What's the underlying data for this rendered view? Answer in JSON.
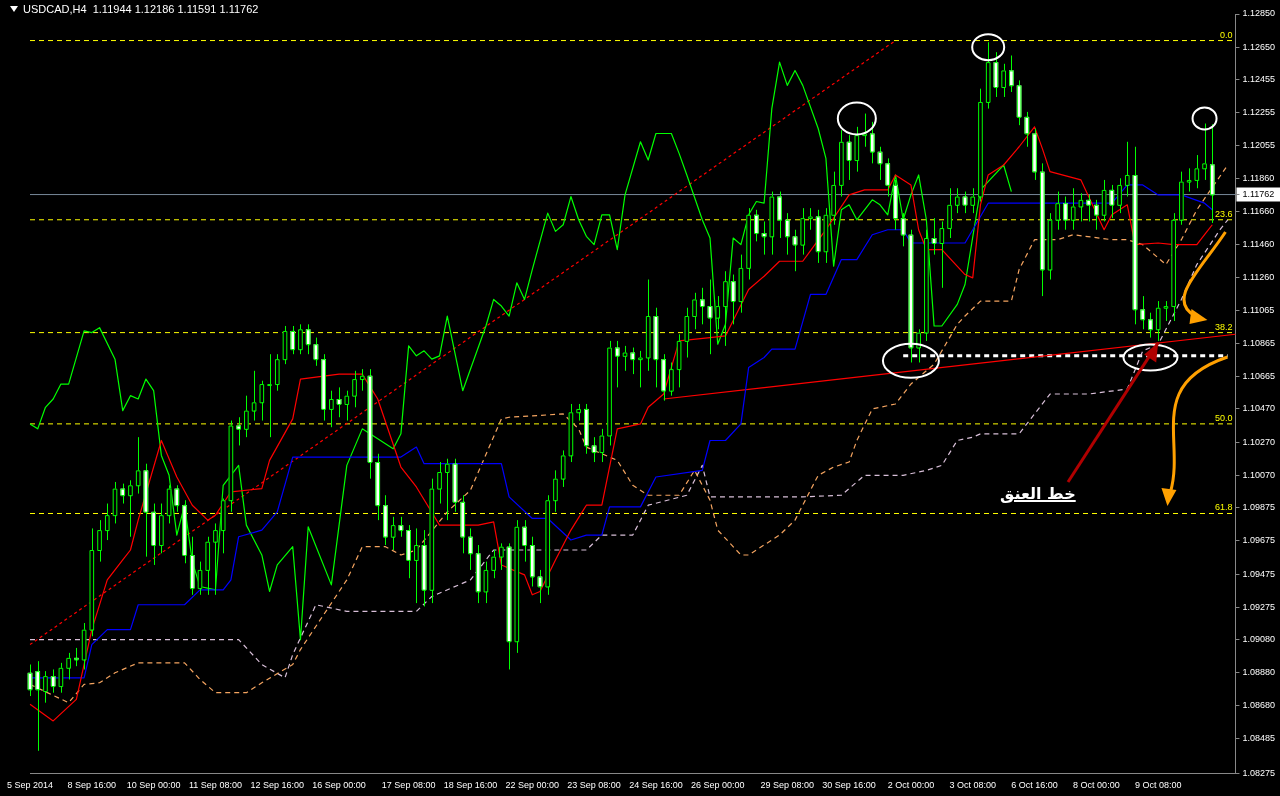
{
  "chart_data": {
    "type": "candlestick",
    "title": "USDCAD,H4  1.11944 1.12186 1.11591 1.11762",
    "categories": [
      "5 Sep 2014",
      null,
      null,
      null,
      null,
      null,
      null,
      null,
      "8 Sep 16:00",
      null,
      null,
      null,
      null,
      null,
      null,
      null,
      "10 Sep 00:00",
      null,
      null,
      null,
      null,
      null,
      null,
      null,
      "11 Sep 08:00",
      null,
      null,
      null,
      null,
      null,
      null,
      null,
      "12 Sep 16:00",
      null,
      null,
      null,
      null,
      null,
      null,
      null,
      "16 Sep 00:00",
      null,
      null,
      null,
      null,
      null,
      null,
      null,
      null,
      "17 Sep 08:00",
      null,
      null,
      null,
      null,
      null,
      null,
      null,
      "18 Sep 16:00",
      null,
      null,
      null,
      null,
      null,
      null,
      null,
      "22 Sep 00:00",
      null,
      null,
      null,
      null,
      null,
      null,
      null,
      "23 Sep 08:00",
      null,
      null,
      null,
      null,
      null,
      null,
      null,
      "24 Sep 16:00",
      null,
      null,
      null,
      null,
      null,
      null,
      null,
      "26 Sep 00:00",
      null,
      null,
      null,
      null,
      null,
      null,
      null,
      null,
      "29 Sep 08:00",
      null,
      null,
      null,
      null,
      null,
      null,
      null,
      "30 Sep 16:00",
      null,
      null,
      null,
      null,
      null,
      null,
      null,
      "2 Oct 00:00",
      null,
      null,
      null,
      null,
      null,
      null,
      null,
      "3 Oct 08:00",
      null,
      null,
      null,
      null,
      null,
      null,
      null,
      "6 Oct 16:00",
      null,
      null,
      null,
      null,
      null,
      null,
      null,
      "8 Oct 00:00",
      null,
      null,
      null,
      null,
      null,
      null,
      null,
      "9 Oct 08:00",
      null,
      null,
      null,
      null,
      null,
      null,
      null,
      null,
      null,
      null
    ],
    "ohlc": [
      [
        1.0888,
        1.0893,
        1.0874,
        1.0878
      ],
      [
        1.0889,
        1.0895,
        1.0841,
        1.0878
      ],
      [
        1.0877,
        1.0889,
        1.087,
        1.0886
      ],
      [
        1.0886,
        1.089,
        1.0876,
        1.088
      ],
      [
        1.088,
        1.0894,
        1.0876,
        1.0891
      ],
      [
        1.0891,
        1.09,
        1.0884,
        1.0897
      ],
      [
        1.0897,
        1.0903,
        1.0892,
        1.0896
      ],
      [
        1.0896,
        1.0918,
        1.089,
        1.0914
      ],
      [
        1.0914,
        1.0975,
        1.091,
        1.0962
      ],
      [
        1.0962,
        1.098,
        1.0955,
        1.0974
      ],
      [
        1.0974,
        1.099,
        1.0968,
        1.0983
      ],
      [
        1.0983,
        1.1003,
        1.0978,
        1.0999
      ],
      [
        1.0999,
        1.1002,
        1.099,
        1.0995
      ],
      [
        1.0995,
        1.1004,
        1.097,
        1.1001
      ],
      [
        1.1001,
        1.103,
        1.0996,
        1.101
      ],
      [
        1.101,
        1.1014,
        1.0958,
        1.0985
      ],
      [
        1.0985,
        1.099,
        1.0953,
        1.0965
      ],
      [
        1.0965,
        1.099,
        1.096,
        1.0983
      ],
      [
        1.0983,
        1.1001,
        1.0978,
        1.0999
      ],
      [
        1.0999,
        1.1001,
        1.0985,
        1.0989
      ],
      [
        1.0989,
        1.0992,
        1.0954,
        1.0959
      ],
      [
        1.0959,
        1.097,
        1.0935,
        1.0939
      ],
      [
        1.0939,
        1.0955,
        1.0935,
        1.095
      ],
      [
        1.095,
        1.097,
        1.0935,
        1.0967
      ],
      [
        1.0967,
        1.0978,
        1.0935,
        1.0974
      ],
      [
        1.0974,
        1.0993,
        1.096,
        1.0992
      ],
      [
        1.0992,
        1.104,
        1.0985,
        1.1037
      ],
      [
        1.1037,
        1.1042,
        1.1025,
        1.1035
      ],
      [
        1.1035,
        1.1055,
        1.103,
        1.1046
      ],
      [
        1.1046,
        1.107,
        1.104,
        1.1051
      ],
      [
        1.1051,
        1.1064,
        1.104,
        1.1062
      ],
      [
        1.1062,
        1.108,
        1.103,
        1.1062
      ],
      [
        1.1062,
        1.108,
        1.1058,
        1.1077
      ],
      [
        1.1077,
        1.1097,
        1.1074,
        1.1094
      ],
      [
        1.1094,
        1.1097,
        1.108,
        1.1083
      ],
      [
        1.1083,
        1.1098,
        1.108,
        1.1095
      ],
      [
        1.1095,
        1.1098,
        1.108,
        1.1086
      ],
      [
        1.1086,
        1.109,
        1.1073,
        1.1077
      ],
      [
        1.1077,
        1.108,
        1.104,
        1.1047
      ],
      [
        1.1047,
        1.1058,
        1.1036,
        1.1053
      ],
      [
        1.1053,
        1.106,
        1.1042,
        1.105
      ],
      [
        1.105,
        1.1058,
        1.104,
        1.1055
      ],
      [
        1.1055,
        1.107,
        1.1048,
        1.1065
      ],
      [
        1.1065,
        1.1071,
        1.1058,
        1.1067
      ],
      [
        1.1067,
        1.1071,
        1.1005,
        1.1015
      ],
      [
        1.1015,
        1.102,
        1.098,
        1.0989
      ],
      [
        1.0989,
        1.0995,
        1.0965,
        1.097
      ],
      [
        1.097,
        1.0982,
        1.0962,
        1.0977
      ],
      [
        1.0977,
        1.0982,
        1.097,
        1.0974
      ],
      [
        1.0974,
        1.0977,
        1.0945,
        1.0956
      ],
      [
        1.0956,
        1.0975,
        1.093,
        1.0965
      ],
      [
        1.0965,
        1.0974,
        1.0928,
        1.0938
      ],
      [
        1.0938,
        1.1005,
        1.093,
        1.0999
      ],
      [
        1.0999,
        1.1015,
        1.099,
        1.1009
      ],
      [
        1.1009,
        1.1017,
        1.098,
        1.1014
      ],
      [
        1.1014,
        1.1017,
        1.0985,
        1.0991
      ],
      [
        1.0991,
        1.0995,
        1.096,
        1.097
      ],
      [
        1.097,
        1.0975,
        1.095,
        1.096
      ],
      [
        1.096,
        1.0965,
        1.093,
        1.0937
      ],
      [
        1.0937,
        1.0955,
        1.093,
        1.095
      ],
      [
        1.095,
        1.0962,
        1.0945,
        1.0958
      ],
      [
        1.0958,
        1.0966,
        1.095,
        1.0964
      ],
      [
        1.0964,
        1.0966,
        1.089,
        1.0907
      ],
      [
        1.0907,
        1.098,
        1.09,
        1.0976
      ],
      [
        1.0976,
        1.098,
        1.0955,
        1.0965
      ],
      [
        1.0965,
        1.097,
        1.094,
        1.0946
      ],
      [
        1.0946,
        1.095,
        1.093,
        1.094
      ],
      [
        1.094,
        1.0995,
        1.0935,
        1.0992
      ],
      [
        1.0992,
        1.101,
        1.0985,
        1.1005
      ],
      [
        1.1005,
        1.1022,
        1.1,
        1.1019
      ],
      [
        1.1019,
        1.105,
        1.1015,
        1.1045
      ],
      [
        1.1045,
        1.105,
        1.104,
        1.1047
      ],
      [
        1.1047,
        1.105,
        1.102,
        1.1025
      ],
      [
        1.1025,
        1.103,
        1.1015,
        1.1021
      ],
      [
        1.1021,
        1.1035,
        1.1015,
        1.1031
      ],
      [
        1.1031,
        1.1088,
        1.1025,
        1.1084
      ],
      [
        1.1084,
        1.1088,
        1.106,
        1.1079
      ],
      [
        1.1079,
        1.1085,
        1.107,
        1.1081
      ],
      [
        1.1081,
        1.1084,
        1.1068,
        1.1077
      ],
      [
        1.1077,
        1.1082,
        1.106,
        1.1078
      ],
      [
        1.1078,
        1.1125,
        1.107,
        1.1103
      ],
      [
        1.1103,
        1.1108,
        1.106,
        1.1077
      ],
      [
        1.1077,
        1.108,
        1.1052,
        1.1058
      ],
      [
        1.1058,
        1.1075,
        1.1055,
        1.1071
      ],
      [
        1.1071,
        1.1092,
        1.106,
        1.1088
      ],
      [
        1.1088,
        1.1108,
        1.1078,
        1.1103
      ],
      [
        1.1103,
        1.1117,
        1.1095,
        1.1113
      ],
      [
        1.1113,
        1.112,
        1.1098,
        1.1109
      ],
      [
        1.1109,
        1.1125,
        1.108,
        1.1102
      ],
      [
        1.1102,
        1.1115,
        1.1095,
        1.1109
      ],
      [
        1.1109,
        1.113,
        1.1085,
        1.1124
      ],
      [
        1.1124,
        1.1128,
        1.1098,
        1.1112
      ],
      [
        1.1112,
        1.114,
        1.1105,
        1.1132
      ],
      [
        1.1132,
        1.1168,
        1.1125,
        1.1164
      ],
      [
        1.1164,
        1.1167,
        1.1148,
        1.1153
      ],
      [
        1.1153,
        1.116,
        1.114,
        1.1151
      ],
      [
        1.1151,
        1.1178,
        1.114,
        1.1175
      ],
      [
        1.1175,
        1.1178,
        1.115,
        1.1161
      ],
      [
        1.1161,
        1.1165,
        1.114,
        1.1151
      ],
      [
        1.1151,
        1.1155,
        1.113,
        1.1146
      ],
      [
        1.1146,
        1.1168,
        1.114,
        1.1162
      ],
      [
        1.1162,
        1.1168,
        1.1155,
        1.1163
      ],
      [
        1.1163,
        1.1167,
        1.1135,
        1.1142
      ],
      [
        1.1142,
        1.1168,
        1.1135,
        1.1164
      ],
      [
        1.1164,
        1.119,
        1.1158,
        1.1182
      ],
      [
        1.1182,
        1.1215,
        1.1175,
        1.1208
      ],
      [
        1.1208,
        1.1212,
        1.1185,
        1.1197
      ],
      [
        1.1197,
        1.1217,
        1.119,
        1.1212
      ],
      [
        1.1212,
        1.1225,
        1.1205,
        1.1213
      ],
      [
        1.1213,
        1.122,
        1.1195,
        1.1202
      ],
      [
        1.1202,
        1.1205,
        1.1185,
        1.1195
      ],
      [
        1.1195,
        1.1198,
        1.1175,
        1.1182
      ],
      [
        1.1182,
        1.1185,
        1.1155,
        1.1162
      ],
      [
        1.1162,
        1.1165,
        1.1145,
        1.1152
      ],
      [
        1.1152,
        1.1155,
        1.1075,
        1.1084
      ],
      [
        1.1084,
        1.1095,
        1.1075,
        1.1093
      ],
      [
        1.1093,
        1.1155,
        1.1088,
        1.115
      ],
      [
        1.115,
        1.1162,
        1.114,
        1.1147
      ],
      [
        1.1147,
        1.116,
        1.112,
        1.1156
      ],
      [
        1.1156,
        1.118,
        1.115,
        1.117
      ],
      [
        1.117,
        1.118,
        1.1165,
        1.1175
      ],
      [
        1.1175,
        1.1178,
        1.1165,
        1.117
      ],
      [
        1.117,
        1.118,
        1.1165,
        1.1175
      ],
      [
        1.1175,
        1.124,
        1.1172,
        1.1232
      ],
      [
        1.1232,
        1.1268,
        1.1228,
        1.1256
      ],
      [
        1.1256,
        1.1262,
        1.1235,
        1.1241
      ],
      [
        1.1241,
        1.1255,
        1.1235,
        1.1251
      ],
      [
        1.1251,
        1.126,
        1.1238,
        1.1242
      ],
      [
        1.1242,
        1.1245,
        1.1218,
        1.1223
      ],
      [
        1.1223,
        1.1226,
        1.1205,
        1.1213
      ],
      [
        1.1213,
        1.1216,
        1.1185,
        1.119
      ],
      [
        1.119,
        1.1195,
        1.1115,
        1.1131
      ],
      [
        1.1131,
        1.1165,
        1.1125,
        1.1161
      ],
      [
        1.1161,
        1.1178,
        1.1155,
        1.1171
      ],
      [
        1.1171,
        1.1175,
        1.1155,
        1.1161
      ],
      [
        1.1161,
        1.118,
        1.1155,
        1.1169
      ],
      [
        1.1169,
        1.1177,
        1.116,
        1.1173
      ],
      [
        1.1173,
        1.1176,
        1.116,
        1.117
      ],
      [
        1.117,
        1.1173,
        1.1155,
        1.1164
      ],
      [
        1.1164,
        1.1185,
        1.116,
        1.1179
      ],
      [
        1.1179,
        1.1182,
        1.1162,
        1.117
      ],
      [
        1.117,
        1.1186,
        1.1165,
        1.1182
      ],
      [
        1.1182,
        1.1208,
        1.1175,
        1.1188
      ],
      [
        1.1188,
        1.1205,
        1.1098,
        1.1107
      ],
      [
        1.1107,
        1.1115,
        1.1095,
        1.1101
      ],
      [
        1.1101,
        1.1105,
        1.109,
        1.1095
      ],
      [
        1.1095,
        1.1112,
        1.1088,
        1.1108
      ],
      [
        1.1108,
        1.1112,
        1.11,
        1.1109
      ],
      [
        1.1109,
        1.1165,
        1.11,
        1.1161
      ],
      [
        1.1161,
        1.119,
        1.1158,
        1.1184
      ],
      [
        1.1184,
        1.1192,
        1.1178,
        1.1185
      ],
      [
        1.1185,
        1.12,
        1.118,
        1.1192
      ],
      [
        1.1192,
        1.1219,
        1.1185,
        1.1195
      ],
      [
        1.11944,
        1.12186,
        1.11591,
        1.11762
      ],
      null,
      null,
      null
    ],
    "series": [
      {
        "type": "line",
        "color": "#ff0000",
        "line_style": "solid",
        "values": [
          1.0869,
          null,
          null,
          1.0859,
          null,
          null,
          1.0872,
          null,
          1.0914,
          null,
          1.0944,
          null,
          1.0956,
          1.0962,
          1.098,
          null,
          null,
          1.1028,
          null,
          1.1006,
          null,
          1.0989,
          null,
          1.098,
          1.0983,
          null,
          1.0997,
          null,
          null,
          null,
          1.0999,
          1.1016,
          null,
          null,
          1.1041,
          1.1065,
          null,
          null,
          null,
          null,
          1.1068,
          null,
          null,
          1.1068,
          null,
          1.1053,
          null,
          null,
          1.1012,
          null,
          1.1,
          null,
          null,
          1.0977,
          null,
          null,
          null,
          null,
          1.0977,
          null,
          1.0979,
          1.0953,
          null,
          null,
          1.0947,
          1.0935,
          1.0937,
          null,
          1.0956,
          null,
          1.0974,
          null,
          1.0989,
          null,
          1.0989,
          null,
          1.1035,
          null,
          null,
          1.1038,
          1.1048,
          null,
          1.1056,
          null,
          1.1088,
          null,
          null,
          null,
          1.109,
          null,
          1.1091,
          null,
          null,
          1.1119,
          null,
          1.1127,
          null,
          1.1136,
          null,
          null,
          1.1136,
          null,
          null,
          1.1155,
          null,
          null,
          1.1176,
          null,
          1.1179,
          null,
          null,
          1.1179,
          1.1188,
          null,
          1.1182,
          1.1155,
          1.1143,
          null,
          1.1143,
          null,
          null,
          1.1128,
          1.1126,
          1.117,
          1.1188,
          null,
          1.1194,
          null,
          1.1205,
          null,
          1.1217,
          1.1204,
          1.119,
          null,
          null,
          null,
          1.1185,
          null,
          null,
          1.1155,
          1.1164,
          null,
          1.117,
          1.1146,
          null,
          null,
          1.1147,
          null,
          1.1146,
          null,
          null,
          1.1146,
          1.1152,
          1.1158,
          null,
          null,
          null
        ]
      },
      {
        "type": "line",
        "color": "#0000ff",
        "line_style": "solid",
        "values": [
          1.0885,
          null,
          null,
          null,
          null,
          null,
          null,
          1.0885,
          1.0905,
          null,
          1.0914,
          null,
          null,
          1.0914,
          1.0929,
          null,
          null,
          null,
          null,
          null,
          1.0929,
          null,
          1.0938,
          null,
          null,
          1.0938,
          1.0944,
          1.097,
          null,
          null,
          1.0974,
          null,
          1.0985,
          null,
          1.1018,
          null,
          null,
          null,
          null,
          null,
          null,
          null,
          null,
          null,
          null,
          null,
          null,
          null,
          1.1018,
          null,
          1.1024,
          1.1014,
          null,
          null,
          null,
          null,
          null,
          null,
          null,
          null,
          null,
          1.1014,
          1.0994,
          null,
          null,
          1.0981,
          null,
          1.0981,
          null,
          null,
          1.0968,
          null,
          1.0971,
          null,
          1.0971,
          1.0988,
          null,
          null,
          null,
          1.0988,
          null,
          1.1006,
          null,
          null,
          null,
          null,
          null,
          1.101,
          1.1028,
          null,
          1.1028,
          null,
          1.1038,
          1.1072,
          null,
          1.1078,
          1.1083,
          null,
          null,
          1.1083,
          null,
          1.1116,
          null,
          1.1116,
          null,
          1.1137,
          null,
          1.1137,
          null,
          1.1152,
          null,
          1.1155,
          null,
          1.1155,
          1.1147,
          null,
          null,
          null,
          null,
          null,
          null,
          1.1147,
          1.1155,
          null,
          1.1171,
          null,
          null,
          null,
          null,
          null,
          null,
          null,
          null,
          null,
          null,
          null,
          null,
          null,
          null,
          null,
          1.1171,
          null,
          1.1182,
          null,
          1.1182,
          null,
          1.1176,
          null,
          null,
          1.1176,
          null,
          null,
          1.1171,
          1.1167,
          null,
          null,
          null
        ]
      },
      {
        "type": "line",
        "color": "#00ff00",
        "line_style": "solid",
        "values": [
          1.1038,
          1.1035,
          1.1048,
          1.1053,
          1.1062,
          1.1062,
          null,
          1.1094,
          1.1093,
          1.1096,
          null,
          1.1077,
          1.1046,
          1.1055,
          1.1053,
          1.1065,
          1.1058,
          1.1019,
          1.1007,
          1.0971,
          1.0989,
          1.0955,
          1.094,
          null,
          1.0938,
          1.1001,
          null,
          1.1013,
          1.0977,
          null,
          1.0959,
          1.0937,
          1.0953,
          null,
          1.0964,
          1.0908,
          1.0976,
          null,
          null,
          1.0941,
          null,
          1.1013,
          null,
          1.1035,
          null,
          null,
          1.1026,
          1.1023,
          1.1032,
          1.1085,
          1.1079,
          1.1082,
          1.1077,
          1.1079,
          1.1103,
          null,
          1.1058,
          null,
          null,
          1.1097,
          1.1113,
          1.1109,
          1.1103,
          1.1123,
          1.1113,
          1.1131,
          null,
          1.1165,
          1.1154,
          1.1158,
          1.1175,
          1.1161,
          1.1151,
          1.1146,
          1.1164,
          1.1164,
          1.1143,
          1.1176,
          null,
          1.1208,
          1.1197,
          1.1213,
          null,
          1.1213,
          1.1201,
          1.1188,
          null,
          1.1161,
          1.115,
          1.1086,
          1.1098,
          1.115,
          1.1146,
          1.1164,
          1.1172,
          1.1171,
          1.1228,
          1.1256,
          1.1242,
          1.1251,
          1.1242,
          null,
          1.1216,
          1.1198,
          1.1133,
          1.1167,
          1.117,
          1.1161,
          null,
          1.1173,
          1.117,
          1.1164,
          1.1188,
          1.1161,
          1.1176,
          1.1188,
          1.1161,
          1.1097,
          1.1097,
          null,
          1.111,
          1.1122,
          null,
          1.1179,
          1.1184,
          null,
          1.1194,
          1.1178,
          null,
          null,
          null,
          null,
          null,
          null,
          null,
          null,
          null,
          null,
          null,
          null,
          null,
          null,
          null,
          null,
          null,
          null,
          null,
          null,
          null,
          null,
          null,
          null,
          null,
          null,
          null,
          null,
          null
        ]
      },
      {
        "type": "line",
        "color": "#f4a460",
        "line_style": "dashed",
        "values": [
          1.0881,
          null,
          null,
          null,
          null,
          1.087,
          null,
          1.0881,
          null,
          1.0882,
          null,
          1.0888,
          null,
          null,
          1.0894,
          null,
          null,
          null,
          null,
          null,
          1.0894,
          null,
          1.0884,
          null,
          1.0876,
          null,
          null,
          null,
          1.0876,
          null,
          1.0882,
          null,
          null,
          null,
          1.0893,
          1.0902,
          null,
          null,
          1.0923,
          null,
          null,
          1.0944,
          null,
          1.0964,
          null,
          null,
          1.0964,
          null,
          1.0959,
          null,
          1.0962,
          null,
          null,
          null,
          1.0985,
          null,
          null,
          1.0998,
          null,
          null,
          null,
          1.1041,
          1.1042,
          null,
          null,
          null,
          null,
          null,
          null,
          1.1044,
          null,
          1.1035,
          1.1024,
          null,
          null,
          null,
          1.1016,
          null,
          1.1001,
          null,
          1.0995,
          null,
          null,
          null,
          1.0995,
          null,
          1.101,
          null,
          1.0992,
          1.0974,
          null,
          null,
          1.0959,
          1.0959,
          null,
          null,
          null,
          1.0971,
          null,
          1.098,
          1.0989,
          null,
          1.1007,
          null,
          1.1012,
          null,
          1.1015,
          1.1028,
          null,
          1.1047,
          null,
          null,
          1.105,
          null,
          1.1062,
          null,
          null,
          1.1074,
          null,
          null,
          1.1098,
          1.1103,
          null,
          1.1112,
          null,
          null,
          null,
          1.1112,
          1.1131,
          null,
          1.1149,
          null,
          null,
          1.1149,
          null,
          1.1152,
          null,
          null,
          null,
          null,
          1.1149,
          null,
          1.1149,
          null,
          1.1146,
          null,
          null,
          1.1134,
          null,
          1.1149,
          null,
          1.1167,
          null,
          null,
          null,
          1.1194,
          null
        ]
      },
      {
        "type": "line",
        "color": "#d8bfd8",
        "line_style": "dashed",
        "values": [
          1.0908,
          null,
          null,
          null,
          null,
          null,
          null,
          null,
          null,
          null,
          null,
          null,
          null,
          null,
          null,
          null,
          null,
          null,
          null,
          null,
          null,
          null,
          null,
          null,
          null,
          null,
          null,
          1.0908,
          null,
          null,
          1.0893,
          null,
          null,
          1.0885,
          1.0899,
          null,
          null,
          1.0929,
          null,
          null,
          null,
          1.0925,
          null,
          null,
          null,
          null,
          null,
          null,
          null,
          null,
          1.0925,
          null,
          1.0934,
          null,
          null,
          null,
          null,
          1.0944,
          null,
          null,
          1.0962,
          null,
          null,
          null,
          null,
          null,
          null,
          null,
          null,
          null,
          null,
          null,
          1.0962,
          null,
          1.0971,
          null,
          null,
          null,
          1.0971,
          null,
          1.0989,
          null,
          null,
          null,
          null,
          1.0995,
          null,
          1.1013,
          1.0994,
          null,
          null,
          null,
          null,
          null,
          null,
          null,
          null,
          null,
          null,
          null,
          1.0994,
          null,
          null,
          null,
          null,
          1.0995,
          null,
          null,
          1.1007,
          null,
          null,
          null,
          null,
          1.1007,
          null,
          null,
          1.101,
          null,
          1.1013,
          null,
          1.1028,
          null,
          1.103,
          1.1032,
          null,
          null,
          null,
          null,
          1.1032,
          null,
          null,
          null,
          1.1056,
          null,
          null,
          null,
          null,
          1.1056,
          null,
          null,
          null,
          null,
          1.1059,
          null,
          1.1082,
          null,
          1.1086,
          null,
          null,
          1.1113,
          null,
          1.1134,
          null,
          null,
          1.1155,
          1.1161,
          null
        ]
      },
      {
        "type": "line",
        "color": "#ff0000",
        "line_style": "dotted",
        "values": [
          1.0905,
          null,
          null,
          null,
          null,
          null,
          null,
          null,
          null,
          null,
          null,
          null,
          null,
          null,
          null,
          null,
          null,
          null,
          null,
          null,
          null,
          null,
          null,
          null,
          null,
          null,
          null,
          null,
          null,
          null,
          null,
          null,
          null,
          null,
          null,
          null,
          null,
          null,
          null,
          null,
          null,
          null,
          null,
          null,
          null,
          null,
          null,
          null,
          null,
          null,
          null,
          null,
          null,
          null,
          null,
          null,
          null,
          null,
          null,
          null,
          null,
          null,
          null,
          null,
          null,
          null,
          null,
          null,
          null,
          null,
          null,
          null,
          null,
          null,
          null,
          null,
          null,
          null,
          null,
          null,
          null,
          null,
          null,
          null,
          null,
          null,
          null,
          null,
          null,
          null,
          null,
          null,
          null,
          null,
          null,
          null,
          null,
          null,
          null,
          null,
          null,
          null,
          null,
          null,
          null,
          null,
          null,
          null,
          null,
          null,
          null,
          null,
          1.1269,
          null,
          null,
          null,
          null,
          null,
          null,
          null,
          null,
          null,
          null,
          null,
          null,
          null,
          null,
          null,
          null,
          null,
          null,
          null,
          null,
          null,
          null,
          null,
          null,
          null,
          null,
          null,
          null,
          null,
          null,
          null,
          null,
          null,
          null,
          null,
          null,
          null,
          null,
          null,
          null,
          null,
          null,
          null,
          null
        ]
      },
      {
        "type": "line",
        "color": "#ff0000",
        "line_style": "solid",
        "values": [
          null,
          null,
          null,
          null,
          null,
          null,
          null,
          null,
          null,
          null,
          null,
          null,
          null,
          null,
          null,
          null,
          null,
          null,
          null,
          null,
          null,
          null,
          null,
          null,
          null,
          null,
          null,
          null,
          null,
          null,
          null,
          null,
          null,
          null,
          null,
          null,
          null,
          null,
          null,
          null,
          null,
          null,
          null,
          null,
          null,
          null,
          null,
          null,
          null,
          null,
          null,
          null,
          null,
          null,
          null,
          null,
          null,
          null,
          null,
          null,
          null,
          null,
          null,
          null,
          null,
          null,
          null,
          null,
          null,
          null,
          null,
          null,
          null,
          null,
          null,
          null,
          null,
          null,
          null,
          null,
          null,
          null,
          1.1053,
          null,
          null,
          null,
          null,
          null,
          null,
          null,
          null,
          null,
          null,
          null,
          null,
          null,
          null,
          null,
          null,
          null,
          null,
          null,
          null,
          null,
          null,
          null,
          null,
          null,
          null,
          null,
          null,
          null,
          null,
          null,
          null,
          null,
          null,
          null,
          null,
          null,
          null,
          null,
          null,
          null,
          null,
          null,
          null,
          null,
          null,
          null,
          null,
          null,
          null,
          null,
          null,
          null,
          null,
          null,
          null,
          null,
          null,
          null,
          null,
          null,
          null,
          null,
          null,
          null,
          null,
          null,
          null,
          null,
          null,
          null,
          null,
          null,
          1.1092
        ]
      },
      {
        "type": "line",
        "color": "#ffffff",
        "line_style": "dashed",
        "values": [
          null,
          null,
          null,
          null,
          null,
          null,
          null,
          null,
          null,
          null,
          null,
          null,
          null,
          null,
          null,
          null,
          null,
          null,
          null,
          null,
          null,
          null,
          null,
          null,
          null,
          null,
          null,
          null,
          null,
          null,
          null,
          null,
          null,
          null,
          null,
          null,
          null,
          null,
          null,
          null,
          null,
          null,
          null,
          null,
          null,
          null,
          null,
          null,
          null,
          null,
          null,
          null,
          null,
          null,
          null,
          null,
          null,
          null,
          null,
          null,
          null,
          null,
          null,
          null,
          null,
          null,
          null,
          null,
          null,
          null,
          null,
          null,
          null,
          null,
          null,
          null,
          null,
          null,
          null,
          null,
          null,
          null,
          null,
          null,
          null,
          null,
          null,
          null,
          null,
          null,
          null,
          null,
          null,
          null,
          null,
          null,
          null,
          null,
          null,
          null,
          null,
          null,
          null,
          null,
          null,
          null,
          null,
          null,
          null,
          null,
          null,
          null,
          null,
          1.1079,
          null,
          null,
          null,
          null,
          null,
          null,
          null,
          null,
          null,
          null,
          null,
          null,
          null,
          null,
          null,
          null,
          null,
          null,
          null,
          null,
          null,
          null,
          null,
          null,
          null,
          null,
          null,
          null,
          null,
          null,
          null,
          null,
          null,
          null,
          null,
          null,
          null,
          null,
          null,
          null,
          null,
          1.1079,
          null
        ]
      }
    ],
    "ref_lines": [
      {
        "axis": "y",
        "value": 1.1269,
        "color": "#ffff00",
        "line_style": "dashed"
      },
      {
        "axis": "y",
        "value": 1.1161,
        "color": "#ffff00",
        "line_style": "dashed"
      },
      {
        "axis": "y",
        "value": 1.1093,
        "color": "#ffff00",
        "line_style": "dashed"
      },
      {
        "axis": "y",
        "value": 1.1038,
        "color": "#ffff00",
        "line_style": "dashed"
      },
      {
        "axis": "y",
        "value": 1.0984,
        "color": "#ffff00",
        "line_style": "dashed"
      },
      {
        "axis": "y",
        "value": 1.11762,
        "color": "#778899",
        "line_style": "solid"
      }
    ],
    "annotations": [
      {
        "text": "0.0",
        "y": 1.1269
      },
      {
        "text": "23.6",
        "y": 1.1161
      },
      {
        "text": "38.2",
        "y": 1.1093
      },
      {
        "text": "50.0",
        "y": 1.1038
      },
      {
        "text": "61.8",
        "y": 1.0984
      },
      {
        "text": "خط العنق",
        "x": "9 Oct 08:00",
        "y": 1.1087
      }
    ],
    "ylim": [
      1.08275,
      1.1285
    ],
    "yticks": [
      {
        "value": 1.1285,
        "label": "1.12850"
      },
      {
        "value": 1.1265,
        "label": "1.12650"
      },
      {
        "value": 1.12455,
        "label": "1.12455"
      },
      {
        "value": 1.12255,
        "label": "1.12255"
      },
      {
        "value": 1.12055,
        "label": "1.12055"
      },
      {
        "value": 1.1186,
        "label": "1.11860"
      },
      {
        "value": 1.11762,
        "label": "1.11762"
      },
      {
        "value": 1.1166,
        "label": "1.11660"
      },
      {
        "value": 1.1146,
        "label": "1.11460"
      },
      {
        "value": 1.1126,
        "label": "1.11260"
      },
      {
        "value": 1.11065,
        "label": "1.11065"
      },
      {
        "value": 1.10865,
        "label": "1.10865"
      },
      {
        "value": 1.10665,
        "label": "1.10665"
      },
      {
        "value": 1.1047,
        "label": "1.10470"
      },
      {
        "value": 1.1027,
        "label": "1.10270"
      },
      {
        "value": 1.1007,
        "label": "1.10070"
      },
      {
        "value": 1.09875,
        "label": "1.09875"
      },
      {
        "value": 1.09675,
        "label": "1.09675"
      },
      {
        "value": 1.09475,
        "label": "1.09475"
      },
      {
        "value": 1.09275,
        "label": "1.09275"
      },
      {
        "value": 1.0908,
        "label": "1.09080"
      },
      {
        "value": 1.0888,
        "label": "1.08880"
      },
      {
        "value": 1.0868,
        "label": "1.08680"
      },
      {
        "value": 1.08485,
        "label": "1.08485"
      },
      {
        "value": 1.08275,
        "label": "1.08275"
      }
    ],
    "grid": false,
    "legend": false
  }
}
